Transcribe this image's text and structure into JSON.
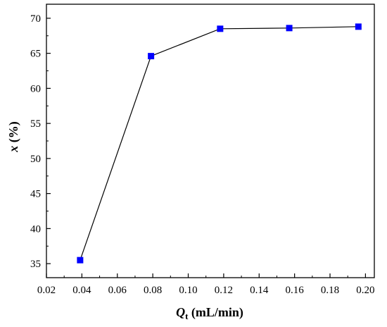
{
  "chart_data": {
    "type": "line",
    "x": [
      0.039,
      0.079,
      0.118,
      0.157,
      0.196
    ],
    "y": [
      35.5,
      64.6,
      68.5,
      68.6,
      68.8
    ],
    "xlim": [
      0.02,
      0.205
    ],
    "ylim": [
      33,
      72
    ],
    "xticks": [
      0.02,
      0.04,
      0.06,
      0.08,
      0.1,
      0.12,
      0.14,
      0.16,
      0.18,
      0.2
    ],
    "xtick_labels": [
      "0.02",
      "0.04",
      "0.06",
      "0.08",
      "0.10",
      "0.12",
      "0.14",
      "0.16",
      "0.18",
      "0.20"
    ],
    "yticks": [
      35,
      40,
      45,
      50,
      55,
      60,
      65,
      70
    ],
    "ytick_labels": [
      "35",
      "40",
      "45",
      "50",
      "55",
      "60",
      "65",
      "70"
    ],
    "xlabel_symbol": "Q",
    "xlabel_subscript": "t",
    "xlabel_unit": " (mL/min)",
    "ylabel_symbol": "x",
    "ylabel_unit": " (%)",
    "marker": "square",
    "marker_color": "#0000ff",
    "line_color": "#000000",
    "grid": false,
    "legend": "none"
  }
}
